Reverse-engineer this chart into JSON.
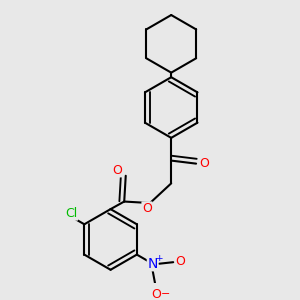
{
  "background_color": "#e8e8e8",
  "bond_color": "#000000",
  "bond_width": 1.5,
  "atom_colors": {
    "O": "#ff0000",
    "N": "#0000ff",
    "Cl": "#00bb00",
    "C": "#000000"
  },
  "font_size": 9,
  "figsize": [
    3.0,
    3.0
  ],
  "dpi": 100
}
